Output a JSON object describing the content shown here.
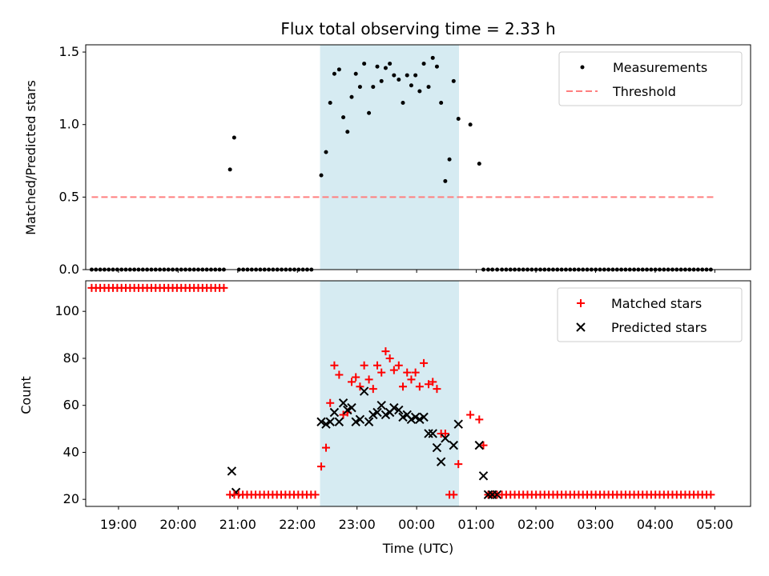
{
  "chart_data": {
    "title": "Flux total observing time = 2.33 h",
    "xlabel": "Time (UTC)",
    "x_unit": "hours since 18:00 UTC",
    "xlim": [
      0.45,
      11.6
    ],
    "xticks": [
      {
        "value": 1,
        "label": "19:00"
      },
      {
        "value": 2,
        "label": "20:00"
      },
      {
        "value": 3,
        "label": "21:00"
      },
      {
        "value": 4,
        "label": "22:00"
      },
      {
        "value": 5,
        "label": "23:00"
      },
      {
        "value": 6,
        "label": "00:00"
      },
      {
        "value": 7,
        "label": "01:00"
      },
      {
        "value": 8,
        "label": "02:00"
      },
      {
        "value": 9,
        "label": "03:00"
      },
      {
        "value": 10,
        "label": "04:00"
      },
      {
        "value": 11,
        "label": "05:00"
      }
    ],
    "shaded_span": {
      "start": 4.38,
      "end": 6.71,
      "color": "#add8e6"
    },
    "panels": [
      {
        "type": "scatter",
        "ylabel": "Matched/Predicted stars",
        "ylim": [
          0,
          1.55
        ],
        "yticks": [
          {
            "value": 0,
            "label": "0.0"
          },
          {
            "value": 0.5,
            "label": "0.5"
          },
          {
            "value": 1.0,
            "label": "1.0"
          },
          {
            "value": 1.5,
            "label": "1.5"
          }
        ],
        "legend": {
          "position": "upper-right",
          "entries": [
            "Measurements",
            "Threshold"
          ]
        },
        "series": [
          {
            "name": "Measurements",
            "type": "scatter",
            "color": "#000000",
            "x": [
              2.87,
              2.94,
              4.4,
              4.48,
              4.55,
              4.62,
              4.7,
              4.77,
              4.84,
              4.91,
              4.98,
              5.05,
              5.12,
              5.2,
              5.27,
              5.34,
              5.41,
              5.48,
              5.55,
              5.62,
              5.7,
              5.77,
              5.84,
              5.91,
              5.98,
              6.05,
              6.12,
              6.2,
              6.27,
              6.34,
              6.41,
              6.48,
              6.55,
              6.62,
              6.7,
              6.9,
              7.05,
              7.12,
              7.2,
              7.27,
              7.35
            ],
            "y": [
              0.69,
              0.91,
              0.65,
              0.81,
              1.15,
              1.35,
              1.38,
              1.05,
              0.95,
              1.19,
              1.35,
              1.26,
              1.42,
              1.08,
              1.26,
              1.4,
              1.3,
              1.39,
              1.42,
              1.34,
              1.31,
              1.15,
              1.34,
              1.27,
              1.34,
              1.23,
              1.42,
              1.26,
              1.46,
              1.4,
              1.15,
              0.61,
              0.76,
              1.3,
              1.04,
              1.0,
              0.73,
              0.0,
              0.0,
              0.0,
              0.0
            ]
          },
          {
            "name": "Threshold",
            "type": "line",
            "style": "dashed",
            "color": "#ff7f7f",
            "x": [
              0.55,
              10.98
            ],
            "y": [
              0.5,
              0.5
            ]
          }
        ]
      },
      {
        "type": "scatter",
        "ylabel": "Count",
        "ylim": [
          17,
          113
        ],
        "yticks": [
          {
            "value": 20,
            "label": "20"
          },
          {
            "value": 40,
            "label": "40"
          },
          {
            "value": 60,
            "label": "60"
          },
          {
            "value": 80,
            "label": "80"
          },
          {
            "value": 100,
            "label": "100"
          }
        ],
        "legend": {
          "position": "upper-right",
          "entries": [
            "Matched stars",
            "Predicted stars"
          ]
        },
        "series": [
          {
            "name": "Matched stars",
            "marker": "plus",
            "color": "#ff0000",
            "x": [
              4.4,
              4.48,
              4.55,
              4.62,
              4.7,
              4.77,
              4.84,
              4.91,
              4.98,
              5.05,
              5.12,
              5.2,
              5.27,
              5.34,
              5.41,
              5.48,
              5.55,
              5.62,
              5.7,
              5.77,
              5.84,
              5.91,
              5.98,
              6.05,
              6.12,
              6.2,
              6.27,
              6.34,
              6.41,
              6.48,
              6.55,
              6.62,
              6.7,
              6.9,
              7.05,
              7.12,
              7.2,
              7.27,
              7.35
            ],
            "y": [
              34,
              42,
              61,
              77,
              73,
              56,
              57,
              70,
              72,
              68,
              77,
              71,
              67,
              77,
              74,
              83,
              80,
              75,
              77,
              68,
              74,
              71,
              74,
              68,
              78,
              69,
              70,
              67,
              48,
              48,
              22,
              22,
              35,
              56,
              54,
              43,
              22,
              22,
              22
            ]
          },
          {
            "name": "Predicted stars",
            "marker": "x",
            "color": "#000000",
            "x": [
              2.9,
              2.97,
              4.4,
              4.48,
              4.55,
              4.62,
              4.7,
              4.77,
              4.84,
              4.91,
              4.98,
              5.05,
              5.12,
              5.2,
              5.27,
              5.34,
              5.41,
              5.48,
              5.55,
              5.62,
              5.7,
              5.77,
              5.84,
              5.91,
              5.98,
              6.05,
              6.12,
              6.2,
              6.27,
              6.34,
              6.41,
              6.48,
              6.62,
              6.7,
              7.05,
              7.12,
              7.2,
              7.27,
              7.35
            ],
            "y": [
              32,
              23,
              53,
              52,
              53,
              57,
              53,
              61,
              58,
              59,
              53,
              54,
              66,
              53,
              56,
              57,
              60,
              56,
              57,
              59,
              58,
              55,
              56,
              54,
              55,
              54,
              55,
              48,
              48,
              42,
              36,
              46,
              43,
              52,
              43,
              30,
              22,
              22,
              22
            ]
          }
        ]
      }
    ],
    "flat_runs": [
      {
        "panel": 0,
        "series": "Measurements",
        "y": 0.0,
        "x_start": 0.55,
        "x_end": 2.8,
        "step": 0.0715
      },
      {
        "panel": 0,
        "series": "Measurements",
        "y": 0.0,
        "x_start": 3.02,
        "x_end": 4.3,
        "step": 0.0715
      },
      {
        "panel": 0,
        "series": "Measurements",
        "y": 0.0,
        "x_start": 7.43,
        "x_end": 10.98,
        "step": 0.0715
      },
      {
        "panel": 1,
        "series": "Matched stars",
        "y": 110,
        "x_start": 0.55,
        "x_end": 2.8,
        "step": 0.0715
      },
      {
        "panel": 1,
        "series": "Matched stars",
        "y": 22,
        "x_start": 2.87,
        "x_end": 4.3,
        "step": 0.0715
      },
      {
        "panel": 1,
        "series": "Matched stars",
        "y": 22,
        "x_start": 7.43,
        "x_end": 10.98,
        "step": 0.0715
      }
    ]
  }
}
